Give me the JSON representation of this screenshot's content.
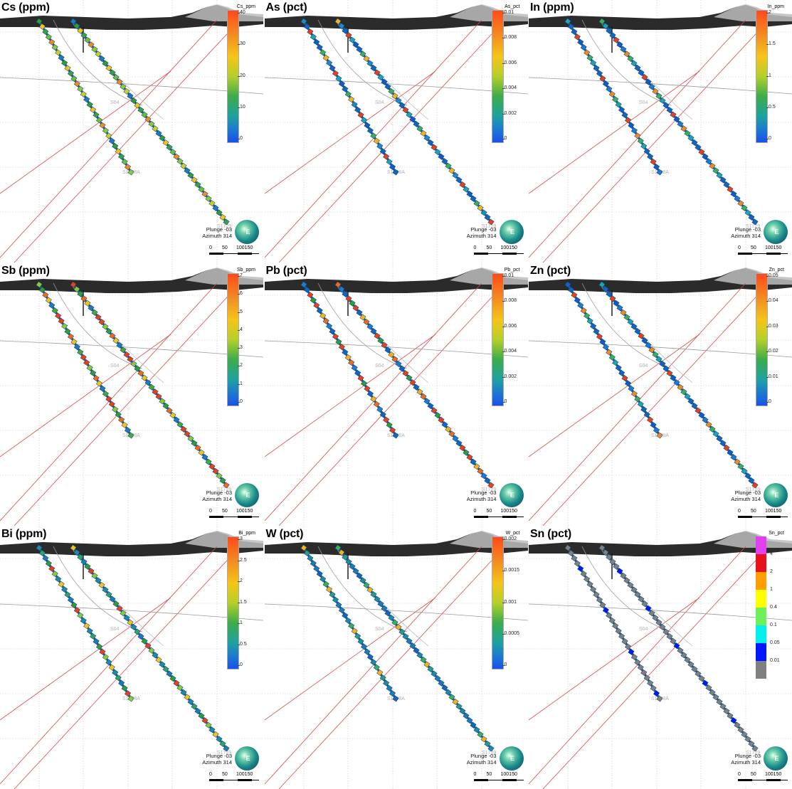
{
  "orientation": {
    "plunge": "Plunge -03",
    "azimuth": "Azimuth 314"
  },
  "scale_labels": [
    "0",
    "50",
    "100150"
  ],
  "hole_labels": {
    "upper": "S04",
    "lower": "S1728A",
    "end": "S1729"
  },
  "panels": [
    {
      "title": "Cs (ppm)",
      "legend_title": "Cs_ppm",
      "ticks": [
        "40",
        "30",
        "20",
        "10",
        "0"
      ],
      "palette": "rainbow",
      "scheme": "mixed"
    },
    {
      "title": "As (pct)",
      "legend_title": "As_pct",
      "ticks": [
        "0.01",
        "0.008",
        "0.006",
        "0.004",
        "0.002",
        "0"
      ],
      "palette": "rainbow",
      "scheme": "blue"
    },
    {
      "title": "In (ppm)",
      "legend_title": "In_ppm",
      "ticks": [
        "2",
        "1.5",
        "1",
        "0.5",
        "0"
      ],
      "palette": "rainbow",
      "scheme": "bluered"
    },
    {
      "title": "Sb (ppm)",
      "legend_title": "Sb_ppm",
      "ticks": [
        "7",
        "6",
        "5",
        "4",
        "3",
        "2",
        "1",
        "0"
      ],
      "palette": "rainbow",
      "scheme": "redgreen"
    },
    {
      "title": "Pb (pct)",
      "legend_title": "Pb_pct",
      "ticks": [
        "0.01",
        "0.008",
        "0.006",
        "0.004",
        "0.002",
        "0"
      ],
      "palette": "rainbow",
      "scheme": "redblue"
    },
    {
      "title": "Zn (pct)",
      "legend_title": "Zn_pct",
      "ticks": [
        "0.05",
        "0.04",
        "0.03",
        "0.02",
        "0.01",
        "0"
      ],
      "palette": "rainbow",
      "scheme": "bluered"
    },
    {
      "title": "Bi (ppm)",
      "legend_title": "Bi_ppm",
      "ticks": [
        "3",
        "2.5",
        "2",
        "1.5",
        "1",
        "0.5",
        "0"
      ],
      "palette": "rainbow",
      "scheme": "tealmix"
    },
    {
      "title": "W (pct)",
      "legend_title": "W_pct",
      "ticks": [
        "0.002",
        "0.0015",
        "0.001",
        "0.0005",
        "0"
      ],
      "palette": "rainbow",
      "scheme": "teal"
    },
    {
      "title": "Sn (pct)",
      "legend_title": "Sn_pct",
      "ticks": [
        "4",
        "2",
        "1",
        "0.4",
        "0.1",
        "0.05",
        "0.01"
      ],
      "palette": "categorical",
      "categories": [
        "#e040f0",
        "#e8101a",
        "#ff9e00",
        "#ffff00",
        "#6ef05a",
        "#00f0f0",
        "#0018ff",
        "#808080"
      ],
      "scheme": "grey"
    }
  ],
  "scheme_colors": {
    "mixed": [
      "#2e9d3a",
      "#6cbf3c",
      "#c8d12a",
      "#f2c31d",
      "#f08a24",
      "#1f7ab8",
      "#3aa14a",
      "#8ac93a"
    ],
    "blue": [
      "#1565c0",
      "#1f8ac7",
      "#1fa3b5",
      "#3cae5c",
      "#1565c0",
      "#0f5cc9",
      "#f5b21b",
      "#e8401c"
    ],
    "bluered": [
      "#1565c0",
      "#1f7ad0",
      "#1fa3b5",
      "#e8401c",
      "#f08a24",
      "#1565c0",
      "#0f5cc9",
      "#3cae5c"
    ],
    "redgreen": [
      "#e8401c",
      "#f06a1c",
      "#4aa83a",
      "#8ac93a",
      "#f2c31d",
      "#e8401c",
      "#2e9d3a",
      "#1f7ab8"
    ],
    "redblue": [
      "#e8401c",
      "#f06a1c",
      "#e8401c",
      "#1565c0",
      "#1f7ad0",
      "#2e9d3a",
      "#f5b21b",
      "#1565c0"
    ],
    "tealmix": [
      "#1f8aa6",
      "#2fa36c",
      "#e8401c",
      "#f2c31d",
      "#1f7ab8",
      "#8ac93a",
      "#1f8aa6",
      "#2e9d3a"
    ],
    "teal": [
      "#1f7ab8",
      "#1f8aa6",
      "#2a9a8c",
      "#1f7ab8",
      "#3cae5c",
      "#1f8aa6",
      "#1565c0",
      "#f5b21b"
    ],
    "grey": [
      "#808080",
      "#808080",
      "#808080",
      "#808080",
      "#0018ff",
      "#808080",
      "#808080",
      "#808080"
    ]
  }
}
